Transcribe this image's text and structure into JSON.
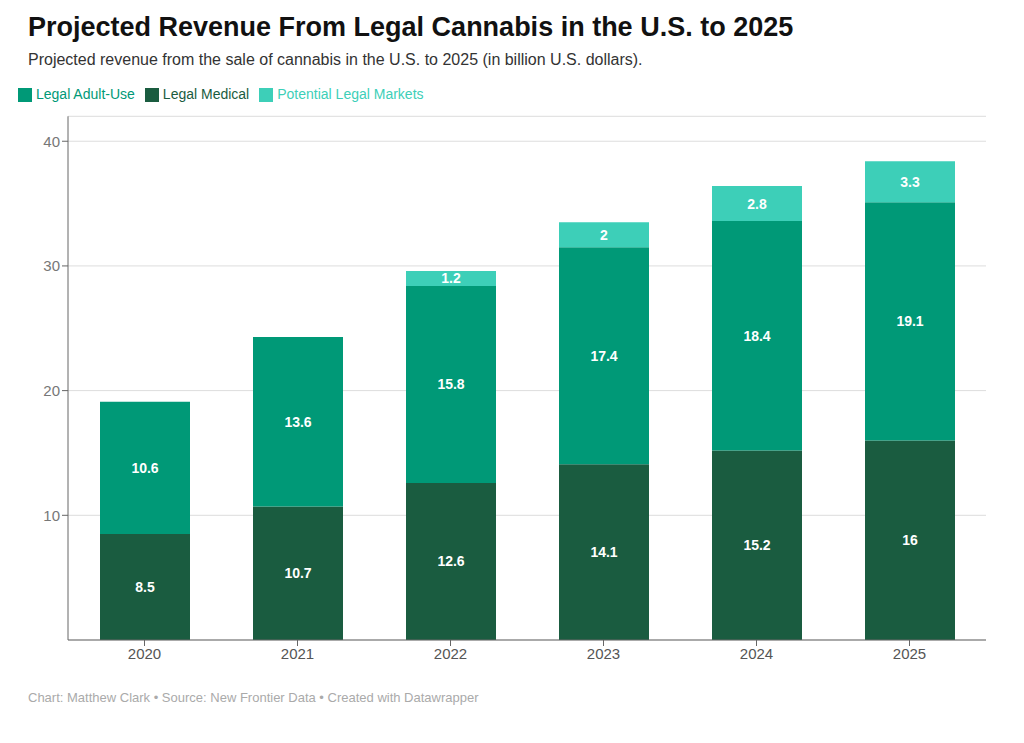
{
  "chart_data": {
    "type": "bar",
    "title": "Projected Revenue From Legal Cannabis in the U.S. to 2025",
    "subtitle": "Projected revenue from the sale of cannabis in the U.S. to 2025 (in billion U.S. dollars).",
    "annotations": [
      "Chart: Matthew Clark • Source: New Frontier Data • Created with Datawrapper"
    ],
    "categories": [
      "2020",
      "2021",
      "2022",
      "2023",
      "2024",
      "2025"
    ],
    "series": [
      {
        "name": "Legal Medical",
        "color": "#1a5c40",
        "values": [
          8.5,
          10.7,
          12.6,
          14.1,
          15.2,
          16.0
        ]
      },
      {
        "name": "Legal Adult-Use",
        "color": "#009977",
        "values": [
          10.6,
          13.6,
          15.8,
          17.4,
          18.4,
          19.1
        ]
      },
      {
        "name": "Potential Legal Markets",
        "color": "#3dcfb8",
        "values": [
          0.0,
          0.0,
          1.2,
          2.0,
          2.8,
          3.3
        ]
      }
    ],
    "ylim": [
      0,
      42
    ],
    "yticks": [
      10,
      20,
      30,
      40
    ],
    "grid": true,
    "stacked": true,
    "data_labels": true,
    "legend": "top-left"
  }
}
